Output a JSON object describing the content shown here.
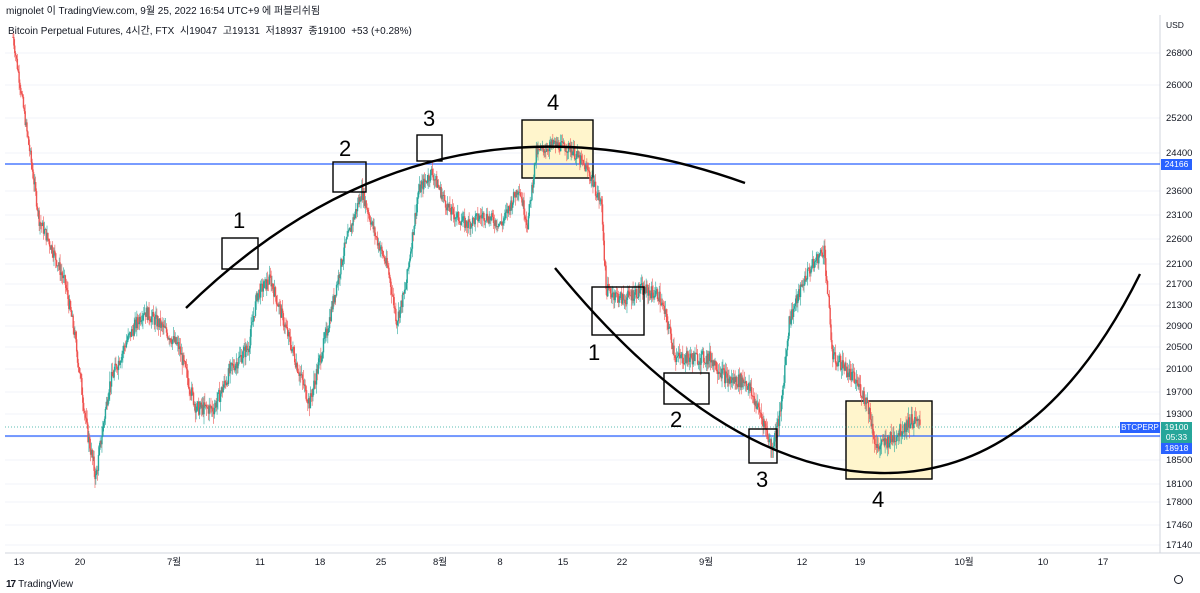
{
  "header": {
    "text": "mignolet 이 TradingView.com, 9월 25, 2022 16:54 UTC+9 에 퍼블리쉬됨"
  },
  "symbol": {
    "name": "Bitcoin Perpetual Futures, 4시간, FTX",
    "open": "시19047",
    "high": "고19131",
    "low": "저18937",
    "close": "종19100",
    "change": "+53 (+0.28%)"
  },
  "price_axis": {
    "currency": "USD",
    "last_price": "19100",
    "countdown": "05:33",
    "ticker_tag": "BTCPERP",
    "level_upper": "24166",
    "level_lower": "18918"
  },
  "footer": {
    "brand": "TradingView",
    "logo": "17"
  },
  "colors": {
    "up": "#26a69a",
    "down": "#ef5350",
    "level_line": "#2962ff",
    "arc": "#000000",
    "highlight_fill": "#fff5cc"
  },
  "chart_data": {
    "type": "candlestick",
    "title": "Bitcoin Perpetual Futures, 4시간, FTX",
    "y_ticks": [
      26800,
      26000,
      25200,
      24400,
      23600,
      23100,
      22600,
      22100,
      21700,
      21300,
      20900,
      20500,
      20100,
      19700,
      19300,
      18900,
      18500,
      18100,
      17800,
      17460,
      17140
    ],
    "x_ticks": [
      "13",
      "20",
      "7월",
      "11",
      "18",
      "25",
      "8월",
      "8",
      "15",
      "22",
      "9월",
      "12",
      "19",
      "10월",
      "10",
      "17"
    ],
    "horizontal_levels": [
      24166,
      18918
    ],
    "annotations": {
      "upper_sequence": [
        "1",
        "2",
        "3",
        "4"
      ],
      "lower_sequence": [
        "1",
        "2",
        "3",
        "4"
      ]
    },
    "price_path": [
      {
        "i": 0,
        "p": 27200
      },
      {
        "i": 3,
        "p": 25000
      },
      {
        "i": 6,
        "p": 23000
      },
      {
        "i": 9,
        "p": 22400
      },
      {
        "i": 12,
        "p": 21700
      },
      {
        "i": 14,
        "p": 20800
      },
      {
        "i": 17,
        "p": 19000
      },
      {
        "i": 19,
        "p": 18200
      },
      {
        "i": 22,
        "p": 19800
      },
      {
        "i": 26,
        "p": 20600
      },
      {
        "i": 30,
        "p": 21200
      },
      {
        "i": 34,
        "p": 20900
      },
      {
        "i": 38,
        "p": 20500
      },
      {
        "i": 42,
        "p": 19400
      },
      {
        "i": 46,
        "p": 19400
      },
      {
        "i": 50,
        "p": 20100
      },
      {
        "i": 54,
        "p": 20500
      },
      {
        "i": 56,
        "p": 21500
      },
      {
        "i": 59,
        "p": 21800
      },
      {
        "i": 62,
        "p": 21000
      },
      {
        "i": 65,
        "p": 20200
      },
      {
        "i": 68,
        "p": 19500
      },
      {
        "i": 72,
        "p": 20800
      },
      {
        "i": 76,
        "p": 22400
      },
      {
        "i": 80,
        "p": 23600
      },
      {
        "i": 83,
        "p": 22700
      },
      {
        "i": 86,
        "p": 22000
      },
      {
        "i": 88,
        "p": 21000
      },
      {
        "i": 90,
        "p": 21600
      },
      {
        "i": 93,
        "p": 23600
      },
      {
        "i": 96,
        "p": 24000
      },
      {
        "i": 100,
        "p": 23200
      },
      {
        "i": 104,
        "p": 22900
      },
      {
        "i": 108,
        "p": 23100
      },
      {
        "i": 112,
        "p": 22900
      },
      {
        "i": 116,
        "p": 23700
      },
      {
        "i": 118,
        "p": 22900
      },
      {
        "i": 120,
        "p": 24400
      },
      {
        "i": 124,
        "p": 24600
      },
      {
        "i": 128,
        "p": 24500
      },
      {
        "i": 132,
        "p": 24000
      },
      {
        "i": 135,
        "p": 23300
      },
      {
        "i": 136,
        "p": 21600
      },
      {
        "i": 140,
        "p": 21400
      },
      {
        "i": 144,
        "p": 21600
      },
      {
        "i": 148,
        "p": 21500
      },
      {
        "i": 150,
        "p": 21000
      },
      {
        "i": 152,
        "p": 20300
      },
      {
        "i": 156,
        "p": 20300
      },
      {
        "i": 160,
        "p": 20300
      },
      {
        "i": 164,
        "p": 19900
      },
      {
        "i": 168,
        "p": 19900
      },
      {
        "i": 172,
        "p": 19200
      },
      {
        "i": 174,
        "p": 18700
      },
      {
        "i": 176,
        "p": 19300
      },
      {
        "i": 178,
        "p": 21000
      },
      {
        "i": 182,
        "p": 21900
      },
      {
        "i": 186,
        "p": 22400
      },
      {
        "i": 188,
        "p": 20300
      },
      {
        "i": 190,
        "p": 20200
      },
      {
        "i": 194,
        "p": 19800
      },
      {
        "i": 196,
        "p": 19500
      },
      {
        "i": 198,
        "p": 18700
      },
      {
        "i": 202,
        "p": 18900
      },
      {
        "i": 206,
        "p": 19200
      },
      {
        "i": 208,
        "p": 19100
      }
    ]
  }
}
